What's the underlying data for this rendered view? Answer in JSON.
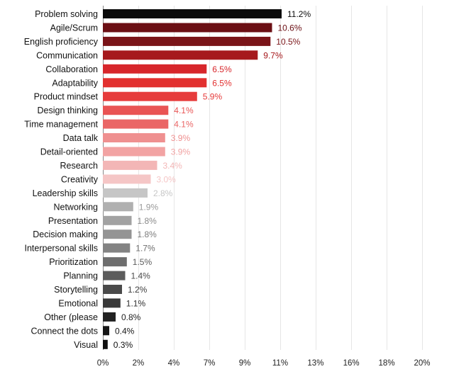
{
  "chart_data": {
    "type": "bar",
    "orientation": "horizontal",
    "title": "",
    "xlabel": "",
    "ylabel": "",
    "grid": true,
    "xlim": [
      0,
      20
    ],
    "xticks": [
      {
        "value": 0,
        "label": "0%"
      },
      {
        "value": 2.22,
        "label": "2%"
      },
      {
        "value": 4.44,
        "label": "4%"
      },
      {
        "value": 6.67,
        "label": "7%"
      },
      {
        "value": 8.89,
        "label": "9%"
      },
      {
        "value": 11.11,
        "label": "11%"
      },
      {
        "value": 13.33,
        "label": "13%"
      },
      {
        "value": 15.56,
        "label": "16%"
      },
      {
        "value": 17.78,
        "label": "18%"
      },
      {
        "value": 20,
        "label": "20%"
      }
    ],
    "categories": [
      "Problem solving",
      "Agile/Scrum",
      "English proficiency",
      "Communication",
      "Collaboration",
      "Adaptability",
      "Product mindset",
      "Design thinking",
      "Time management",
      "Data talk",
      "Detail-oriented",
      "Research",
      "Creativity",
      "Leadership skills",
      "Networking",
      "Presentation",
      "Decision making",
      "Interpersonal skills",
      "Prioritization",
      "Planning",
      "Storytelling",
      "Emotional",
      "Other (please",
      "Connect the dots",
      "Visual"
    ],
    "values": [
      11.2,
      10.6,
      10.5,
      9.7,
      6.5,
      6.5,
      5.9,
      4.1,
      4.1,
      3.9,
      3.9,
      3.4,
      3.0,
      2.8,
      1.9,
      1.8,
      1.8,
      1.7,
      1.5,
      1.4,
      1.2,
      1.1,
      0.8,
      0.4,
      0.3
    ],
    "value_labels": [
      "11.2%",
      "10.6%",
      "10.5%",
      "9.7%",
      "6.5%",
      "6.5%",
      "5.9%",
      "4.1%",
      "4.1%",
      "3.9%",
      "3.9%",
      "3.4%",
      "3.0%",
      "2.8%",
      "1.9%",
      "1.8%",
      "1.8%",
      "1.7%",
      "1.5%",
      "1.4%",
      "1.2%",
      "1.1%",
      "0.8%",
      "0.4%",
      "0.3%"
    ],
    "bar_colors": [
      "#0b0b0b",
      "#6b0f14",
      "#7a1418",
      "#a6191d",
      "#d7262b",
      "#e2302f",
      "#e63c3c",
      "#e95454",
      "#ea6666",
      "#ef9090",
      "#f2a3a3",
      "#f3b6b6",
      "#f5c6c6",
      "#c6c6c6",
      "#b0b0b0",
      "#a2a2a2",
      "#949494",
      "#838383",
      "#6e6e6e",
      "#5c5c5c",
      "#4a4a4a",
      "#393939",
      "#222222",
      "#171717",
      "#0f0f0f"
    ],
    "label_colors": [
      "#0b0b0b",
      "#6b0f14",
      "#7a1418",
      "#a6191d",
      "#d7262b",
      "#e2302f",
      "#e63c3c",
      "#e95454",
      "#ea6666",
      "#ef9090",
      "#f2a3a3",
      "#f3b6b6",
      "#f5c6c6",
      "#c6c6c6",
      "#9a9a9a",
      "#8a8a8a",
      "#7c7c7c",
      "#6e6e6e",
      "#5c5c5c",
      "#4a4a4a",
      "#3d3d3d",
      "#2e2e2e",
      "#222222",
      "#171717",
      "#0f0f0f"
    ]
  }
}
